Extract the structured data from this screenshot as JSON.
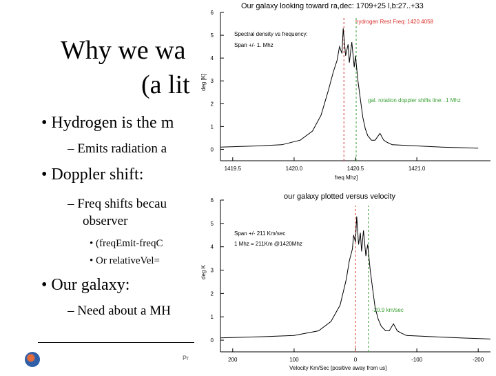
{
  "slide": {
    "title_line1": "Why we wa",
    "title_line2": "(a lit",
    "bullets": [
      {
        "level": 1,
        "text": "• Hydrogen is the m"
      },
      {
        "level": 2,
        "text": "– Emits radiation a"
      },
      {
        "level": 1,
        "text": "• Doppler shift:"
      },
      {
        "level": 2,
        "text": "– Freq shifts becau"
      },
      {
        "level": 2,
        "text": "observer"
      },
      {
        "level": 3,
        "text": "• (freqEmit-freqC"
      },
      {
        "level": 3,
        "text": "• Or relativeVel="
      },
      {
        "level": 1,
        "text": "• Our galaxy:"
      },
      {
        "level": 2,
        "text": "– Need about a MH"
      }
    ],
    "footer_text": "Pr"
  },
  "colors": {
    "hydrogen_line": "#d9302a",
    "shift_line": "#3aa035",
    "trace": "#000000"
  },
  "chart_data": [
    {
      "type": "line",
      "title": "Our galaxy looking toward ra,dec: 1709+25 l,b:27..+33",
      "xlabel": "freq Mhz]",
      "ylabel": "deg [K]",
      "xlim": [
        1419.4,
        1421.6
      ],
      "ylim": [
        -0.5,
        6
      ],
      "xticks": [
        "1419.5",
        "1420.0",
        "1420.5",
        "1421.0"
      ],
      "yticks": [
        "0",
        "1",
        "2",
        "3",
        "4",
        "5",
        "6"
      ],
      "annotations": [
        "Spectral density vs frequency:",
        "Span +/- 1. Mhz"
      ],
      "markers": [
        {
          "label": "hydrogen Rest Freq: 1420.4058",
          "x": 1420.4058,
          "color": "#d9302a"
        },
        {
          "label": "gal. rotation doppler shifts line: .1 Mhz",
          "x": 1420.5058,
          "color": "#3aa035"
        }
      ],
      "x": [
        1419.4,
        1419.7,
        1419.9,
        1420.05,
        1420.15,
        1420.22,
        1420.28,
        1420.32,
        1420.35,
        1420.37,
        1420.39,
        1420.4,
        1420.42,
        1420.44,
        1420.45,
        1420.47,
        1420.49,
        1420.5,
        1420.52,
        1420.54,
        1420.56,
        1420.58,
        1420.6,
        1420.63,
        1420.66,
        1420.7,
        1420.73,
        1420.76,
        1420.8,
        1421.0,
        1421.2,
        1421.5
      ],
      "y": [
        0.1,
        0.15,
        0.2,
        0.4,
        0.8,
        1.5,
        2.6,
        3.4,
        3.9,
        4.5,
        4.2,
        5.3,
        4.1,
        4.6,
        3.8,
        4.7,
        3.6,
        4.1,
        3.0,
        2.2,
        1.4,
        0.9,
        0.6,
        0.4,
        0.4,
        0.7,
        0.4,
        0.3,
        0.2,
        0.15,
        0.1,
        0.05
      ]
    },
    {
      "type": "line",
      "title": "our galaxy plotted versus velocity",
      "xlabel": "Velocity Km/Sec [positive away from us]",
      "ylabel": "deg K",
      "xlim": [
        220,
        -220
      ],
      "ylim": [
        -0.5,
        6
      ],
      "xticks": [
        "200",
        "100",
        "0",
        "-100",
        "-200"
      ],
      "yticks": [
        "0",
        "1",
        "2",
        "3",
        "4",
        "5",
        "6"
      ],
      "annotations": [
        "Span +/- 211 Km/sec",
        "1 Mhz = 211Km @1420Mhz"
      ],
      "markers": [
        {
          "label": "",
          "x": 0,
          "color": "#d9302a"
        },
        {
          "label": "-20.9 km/sec",
          "x": -20.9,
          "color": "#3aa035"
        }
      ],
      "x": [
        220,
        150,
        100,
        60,
        40,
        25,
        15,
        10,
        5,
        3,
        0,
        -2,
        -5,
        -8,
        -10,
        -13,
        -17,
        -20,
        -24,
        -28,
        -32,
        -37,
        -42,
        -49,
        -55,
        -62,
        -68,
        -75,
        -83,
        -125,
        -170,
        -220
      ],
      "y": [
        0.1,
        0.15,
        0.2,
        0.4,
        0.8,
        1.5,
        2.6,
        3.4,
        3.9,
        4.5,
        4.2,
        5.3,
        4.1,
        4.6,
        3.8,
        4.7,
        3.6,
        4.1,
        3.0,
        2.2,
        1.4,
        0.9,
        0.6,
        0.4,
        0.4,
        0.7,
        0.4,
        0.3,
        0.2,
        0.15,
        0.1,
        0.05
      ]
    }
  ]
}
